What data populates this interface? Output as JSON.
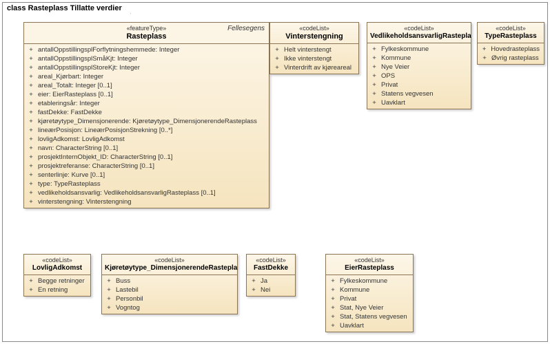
{
  "frame": {
    "title": "class Rasteplass Tillatte verdier"
  },
  "rasteplass": {
    "stereotype": "«featureType»",
    "name": "Rasteplass",
    "corner": "Fellesegens",
    "attrs": [
      "antallOppstillingsplForflytningshemmede: Integer",
      "antallOppstillingsplSmåKjt: Integer",
      "antallOppstillingsplStoreKjt: Integer",
      "areal_Kjørbart: Integer",
      "areal_Totalt: Integer [0..1]",
      "eier: EierRasteplass [0..1]",
      "etableringsår: Integer",
      "fastDekke: FastDekke",
      "kjøretøytype_Dimensjonerende: Kjøretøytype_DimensjonerendeRasteplass",
      "lineærPosisjon: LineærPosisjonStrekning [0..*]",
      "lovligAdkomst: LovligAdkomst",
      "navn: CharacterString [0..1]",
      "prosjektInternObjekt_ID: CharacterString [0..1]",
      "prosjektreferanse: CharacterString [0..1]",
      "senterlinje: Kurve [0..1]",
      "type: TypeRasteplass",
      "vedlikeholdsansvarlig: VedlikeholdsansvarligRasteplass [0..1]",
      "vinterstengning: Vinterstengning"
    ]
  },
  "vinterstengning": {
    "stereotype": "«codeList»",
    "name": "Vinterstengning",
    "attrs": [
      "Helt vinterstengt",
      "Ikke vinterstengt",
      "Vinterdrift av kjøreareal"
    ]
  },
  "vedlikehold": {
    "stereotype": "«codeList»",
    "name": "VedlikeholdsansvarligRastepla",
    "attrs": [
      "Fylkeskommune",
      "Kommune",
      "Nye Veier",
      "OPS",
      "Privat",
      "Statens vegvesen",
      "Uavklart"
    ]
  },
  "typeRasteplass": {
    "stereotype": "«codeList»",
    "name": "TypeRasteplass",
    "attrs": [
      "Hovedrasteplass",
      "Øvrig rasteplass"
    ]
  },
  "lovligAdkomst": {
    "stereotype": "«codeList»",
    "name": "LovligAdkomst",
    "attrs": [
      "Begge retninger",
      "En retning"
    ]
  },
  "kjoretoytype": {
    "stereotype": "«codeList»",
    "name": "Kjøretøytype_DimensjonerendeRastepla",
    "attrs": [
      "Buss",
      "Lastebil",
      "Personbil",
      "Vogntog"
    ]
  },
  "fastDekke": {
    "stereotype": "«codeList»",
    "name": "FastDekke",
    "attrs": [
      "Ja",
      "Nei"
    ]
  },
  "eierRasteplass": {
    "stereotype": "«codeList»",
    "name": "EierRasteplass",
    "attrs": [
      "Fylkeskommune",
      "Kommune",
      "Privat",
      "Stat, Nye Veier",
      "Stat, Statens vegvesen",
      "Uavklart"
    ]
  }
}
